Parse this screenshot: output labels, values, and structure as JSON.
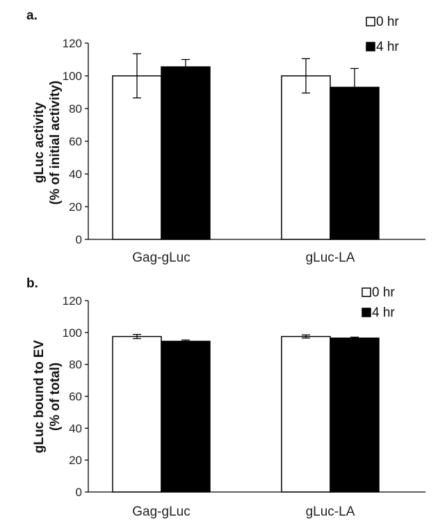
{
  "chart_data": [
    {
      "type": "bar",
      "panel_label": "a.",
      "title": "",
      "ylabel_lines": [
        "gLuc activity",
        "(% of initial activity)"
      ],
      "xlabel": "",
      "categories": [
        "Gag-gLuc",
        "gLuc-LA"
      ],
      "ylim": [
        0,
        120
      ],
      "yticks": [
        0,
        20,
        40,
        60,
        80,
        100,
        120
      ],
      "legend_position": "top-right",
      "series": [
        {
          "name": "0 hr",
          "color": "#ffffff",
          "values": [
            100,
            100
          ],
          "errors": [
            13.5,
            10.5
          ]
        },
        {
          "name": "4 hr",
          "color": "#000000",
          "values": [
            105.5,
            93
          ],
          "errors": [
            4.5,
            11.5
          ]
        }
      ]
    },
    {
      "type": "bar",
      "panel_label": "b.",
      "title": "",
      "ylabel_lines": [
        "gLuc bound to EV",
        "(% of total)"
      ],
      "xlabel": "",
      "categories": [
        "Gag-gLuc",
        "gLuc-LA"
      ],
      "ylim": [
        0,
        120
      ],
      "yticks": [
        0,
        20,
        40,
        60,
        80,
        100,
        120
      ],
      "legend_position": "top-right",
      "series": [
        {
          "name": "0 hr",
          "color": "#ffffff",
          "values": [
            97.5,
            97.5
          ],
          "errors": [
            1.3,
            1.0
          ]
        },
        {
          "name": "4 hr",
          "color": "#000000",
          "values": [
            94.5,
            96.5
          ],
          "errors": [
            0.8,
            0.6
          ]
        }
      ]
    }
  ]
}
